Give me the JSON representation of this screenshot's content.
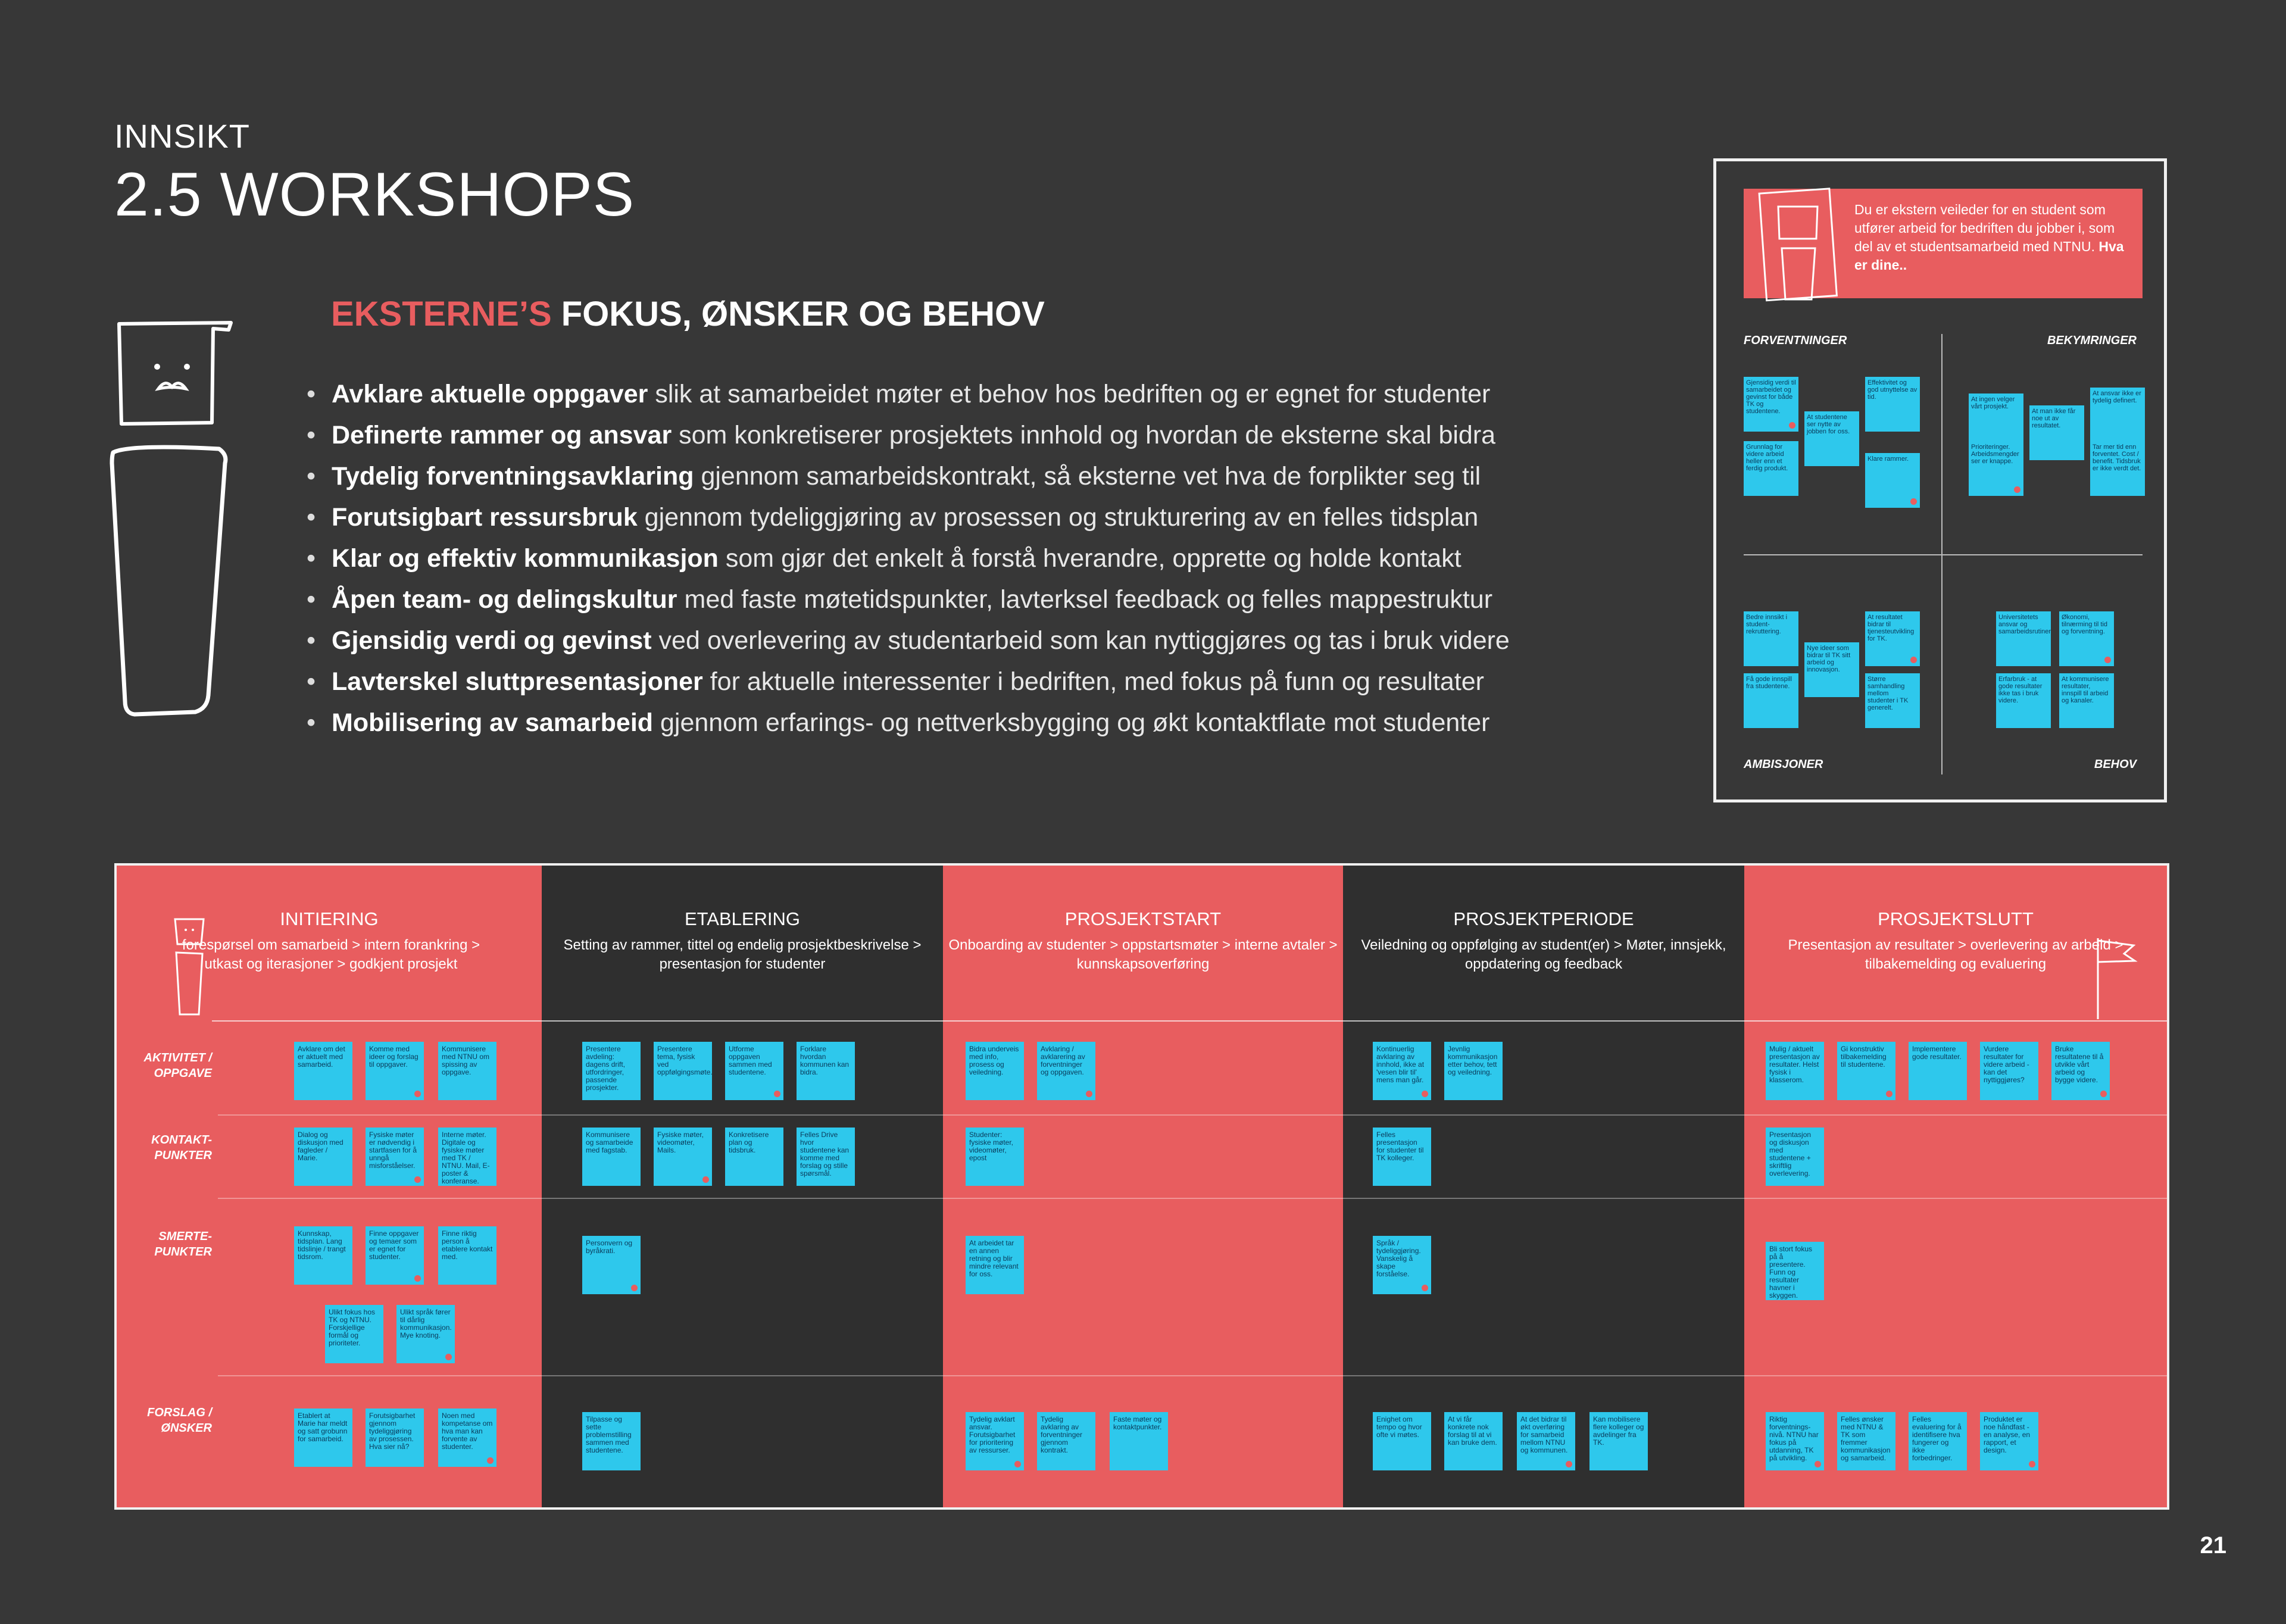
{
  "header": {
    "kicker": "INNSIKT",
    "title": "2.5  WORKSHOPS"
  },
  "section": {
    "accent": "EKSTERNE’S",
    "rest": " FOKUS, ØNSKER OG BEHOV"
  },
  "bullets": [
    {
      "b": "Avklare aktuelle oppgaver",
      "t": " slik at samarbeidet møter et behov hos bedriften og er egnet for studenter"
    },
    {
      "b": "Definerte rammer og ansvar",
      "t": " som konkretiserer prosjektets innhold og hvordan de eksterne skal bidra"
    },
    {
      "b": "Tydelig forventningsavklaring",
      "t": " gjennom samarbeidskontrakt, så eksterne vet hva de forplikter seg til"
    },
    {
      "b": "Forutsigbart ressursbruk",
      "t": " gjennom tydeliggjøring av prosessen og strukturering av en felles tidsplan"
    },
    {
      "b": "Klar og effektiv kommunikasjon",
      "t": " som gjør det enkelt å forstå hverandre, opprette og holde kontakt"
    },
    {
      "b": "Åpen team- og delingskultur",
      "t": " med faste møtetidspunkter, lavterksel feedback og felles mappestruktur"
    },
    {
      "b": "Gjensidig verdi og gevinst",
      "t": " ved overlevering av studentarbeid som kan nyttiggjøres og tas i bruk videre"
    },
    {
      "b": "Lavterskel sluttpresentasjoner",
      "t": " for aktuelle interessenter i bedriften, med fokus på funn og resultater"
    },
    {
      "b": "Mobilisering av samarbeid",
      "t": " gjennom erfarings- og nettverksbygging og økt kontaktflate mot studenter"
    }
  ],
  "canvas": {
    "prompt_text": "Du er ekstern veileder for en student som utfører arbeid for bedriften du jobber i, som del av et studentsamarbeid med NTNU.",
    "prompt_bold": "Hva er dine..",
    "quadrants": [
      "FORVENTNINGER",
      "BEKYMRINGER",
      "AMBISJONER",
      "BEHOV"
    ],
    "notes": [
      "Gjensidig verdi til samarbeidet og gevinst for både TK og studentene.",
      "At studentene ser nytte av jobben for oss.",
      "Effektivitet og god utnyttelse av tid.",
      "Grunnlag for videre arbeid heller enn et ferdig produkt.",
      "Klare rammer.",
      "At ingen velger vårt prosjekt.",
      "At man ikke får noe ut av resultatet.",
      "At ansvar ikke er tydelig definert.",
      "Prioriteringer. Arbeidsmengder ser er knappe.",
      "Tar mer tid enn forventet. Cost / benefit. Tidsbruk er ikke verdt det.",
      "Bedre innsikt i student-rekruttering.",
      "Nye ideer som bidrar til TK sitt arbeid og innovasjon.",
      "At resultatet bidrar til tjenesteutvikling for TK.",
      "Få gode innspill fra studentene.",
      "Større samhandling mellom studenter i TK generelt.",
      "Universitetets ansvar og samarbeidsrutiner.",
      "Økonomi, tilnærming til tid og forventning.",
      "Erfarbruk - at gode resultater ikke tas i bruk videre.",
      "At kommunisere resultater, innspill til arbeid og kanaler."
    ]
  },
  "journey": {
    "phases": [
      {
        "title": "INITIERING",
        "desc": "forespørsel om samarbeid > intern forankring > utkast og iterasjoner > godkjent prosjekt"
      },
      {
        "title": "ETABLERING",
        "desc": "Setting av rammer, tittel og endelig prosjektbeskrivelse > presentasjon for studenter"
      },
      {
        "title": "PROSJEKTSTART",
        "desc": "Onboarding av studenter > oppstartsmøter > interne avtaler > kunnskapsoverføring"
      },
      {
        "title": "PROSJEKTPERIODE",
        "desc": "Veiledning og oppfølging av student(er) > Møter, innsjekk, oppdatering og feedback"
      },
      {
        "title": "PROSJEKTSLUTT",
        "desc": "Presentasjon av resultater > overlevering av arbeid > tilbakemelding og evaluering"
      }
    ],
    "rows": [
      "AKTIVITET / OPPGAVE",
      "KONTAKT-PUNKTER",
      "SMERTE-PUNKTER",
      "FORSLAG / ØNSKER"
    ],
    "notes": [
      "Avklare om det er aktuelt med samarbeid.",
      "Komme med ideer og forslag til oppgaver.",
      "Kommunisere med NTNU om spissing av oppgave.",
      "Dialog og diskusjon med fagleder / Marie.",
      "Fysiske møter er nødvendig i startfasen for å unngå misforståelser.",
      "Interne møter. Digitale og fysiske møter med TK / NTNU. Mail, E-poster & konferanse.",
      "Kunnskap, tidsplan. Lang tidslinje / trangt tidsrom.",
      "Finne oppgaver og temaer som er egnet for studenter.",
      "Finne riktig person å etablere kontakt med.",
      "Ulikt fokus hos TK og NTNU. Forskjellige formål og prioriteter.",
      "Ulikt språk fører til dårlig kommunikasjon. Mye knoting.",
      "Etablert at Marie har meldt og satt grobunn for samarbeid.",
      "Forutsigbarhet gjennom tydeliggjøring av prosessen. Hva sier nå?",
      "Noen med kompetanse om hva man kan forvente av studenter.",
      "Presentere avdeling: dagens drift, utfordringer, passende prosjekter.",
      "Presentere tema, fysisk ved oppfølgingsmøte.",
      "Utforme oppgaven sammen med studentene.",
      "Forklare hvordan kommunen kan bidra.",
      "Kommunisere og samarbeide med fagstab.",
      "Fysiske møter, videomøter, Mails.",
      "Konkretisere plan og tidsbruk.",
      "Felles Drive hvor studentene kan komme med forslag og stille spørsmål.",
      "Personvern og byråkrati.",
      "Tilpasse og sette problemstilling sammen med studentene.",
      "Bidra underveis med info, prosess og veiledning.",
      "Avklaring / avklarering av forventninger og oppgaven.",
      "Studenter: fysiske møter, videomøter, epost",
      "At arbeidet tar en annen retning og blir mindre relevant for oss.",
      "Tydelig avklart ansvar. Forutsigbarhet for prioritering av ressurser.",
      "Tydelig avklaring av forventninger gjennom kontrakt.",
      "Faste møter og kontaktpunkter.",
      "Kontinuerlig avklaring av innhold, ikke at 'vesen blir til' mens man går.",
      "Jevnlig kommunikasjon etter behov, tett og veiledning.",
      "Felles presentasjon for studenter til TK kolleger.",
      "Språk / tydeliggjøring. Vanskelig å skape forståelse.",
      "Enighet om tempo og hvor ofte vi møtes.",
      "At vi får konkrete nok forslag til at vi kan bruke dem.",
      "At det bidrar til økt overføring for samarbeid mellom NTNU og kommunen.",
      "Kan mobilisere flere kolleger og avdelinger fra TK.",
      "Mulig / aktuelt presentasjon av resultater. Helst fysisk i klasserom.",
      "Gi konstruktiv tilbakemelding til studentene.",
      "Implementere gode resultater.",
      "Vurdere resultater for videre arbeid - kan det nyttiggjøres?",
      "Bruke resultatene til å utvikle vårt arbeid og bygge videre.",
      "Presentasjon og diskusjon med studentene + skriftlig overlevering.",
      "Bli stort fokus på å presentere. Funn og resultater havner i skyggen.",
      "Riktig forventnings-nivå. NTNU har fokus på utdanning, TK på utvikling.",
      "Felles ønsker med NTNU & TK som fremmer kommunikasjon og samarbeid.",
      "Felles evaluering for å identifisere hva fungerer og ikke forbedringer.",
      "Produktet er noe håndfast - en analyse, en rapport, et design."
    ]
  },
  "page_number": "21",
  "colors": {
    "background": "#373737",
    "accent": "#e85d5f",
    "sticky": "#2ec8ec",
    "dark_panel": "#2f2f2f"
  }
}
